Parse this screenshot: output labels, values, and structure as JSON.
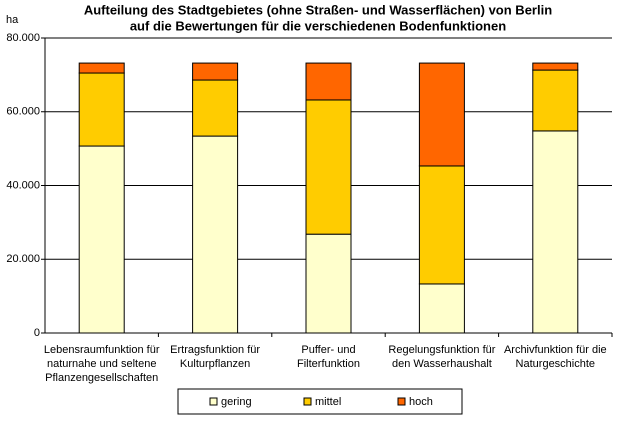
{
  "chart_data": {
    "type": "stacked_bar",
    "title": [
      "Aufteilung des Stadtgebietes (ohne Straßen- und Wasserflächen) von Berlin",
      "auf die Bewertungen für die verschiedenen Bodenfunktionen"
    ],
    "y_label": "ha",
    "categories": [
      [
        "Lebensraumfunktion für",
        "naturnahe und seltene",
        "Pflanzengesellschaften"
      ],
      [
        "Ertragsfunktion für",
        "Kulturpflanzen"
      ],
      [
        "Puffer- und",
        "Filterfunktion"
      ],
      [
        "Regelungsfunktion für",
        "den Wasserhaushalt"
      ],
      [
        "Archivfunktion für die",
        "Naturgeschichte"
      ]
    ],
    "series": [
      {
        "name": "gering",
        "color": "#ffffcc",
        "values": [
          50700,
          53400,
          26800,
          13300,
          54800
        ]
      },
      {
        "name": "mittel",
        "color": "#ffcc00",
        "values": [
          19800,
          15200,
          36400,
          32000,
          16500
        ]
      },
      {
        "name": "hoch",
        "color": "#ff6600",
        "values": [
          2700,
          4600,
          10000,
          27900,
          1900
        ]
      }
    ],
    "ylim": [
      0,
      80000
    ],
    "yticks": [
      0,
      {
        "value": 20000,
        "label": "20.000"
      },
      {
        "value": 40000,
        "label": "40.000"
      },
      {
        "value": 60000,
        "label": "60.000"
      },
      {
        "value": 80000,
        "label": "80.000"
      }
    ],
    "grid": true,
    "legend": "bottom"
  }
}
